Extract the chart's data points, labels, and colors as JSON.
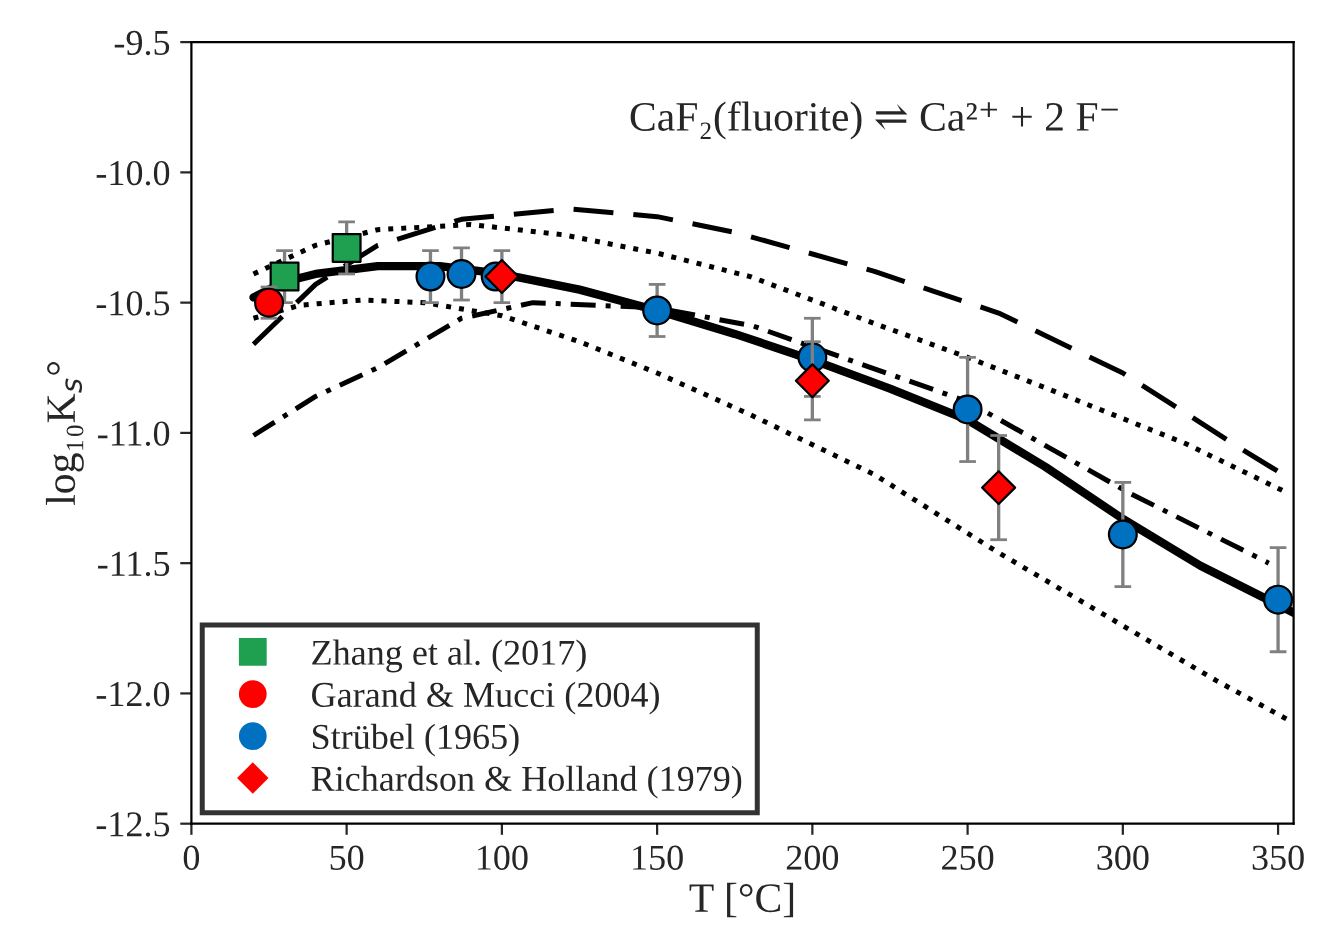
{
  "chart_data": {
    "type": "scatter",
    "annotations": [
      "CaF₂(fluorite) ⇌ Ca²⁺ + 2 F⁻"
    ],
    "xlabel": "T [°C]",
    "ylabel": "log₁₀K$_{s}$°",
    "xlim": [
      0,
      355
    ],
    "xticks": [
      0,
      50,
      100,
      150,
      200,
      250,
      300,
      350
    ],
    "ylim": [
      -12.5,
      -9.5
    ],
    "yticks": [
      -12.5,
      {
        "value": -12,
        "label": "-12.0"
      },
      -11.5,
      {
        "value": -11,
        "label": "-11.0"
      },
      -10.5,
      {
        "value": -10,
        "label": "-10.0"
      },
      -9.5
    ],
    "grid": false,
    "legend": "bottom left",
    "series": [
      {
        "type": "line",
        "color": "#000000",
        "line_style": "solid",
        "marker": "none",
        "x": [
          20,
          30,
          40,
          60,
          80,
          100,
          125,
          150,
          175,
          200,
          225,
          250,
          275,
          300,
          325,
          350,
          355
        ],
        "values": [
          -10.48,
          -10.42,
          -10.39,
          -10.36,
          -10.36,
          -10.39,
          -10.45,
          -10.53,
          -10.62,
          -10.72,
          -10.83,
          -10.95,
          -11.13,
          -11.33,
          -11.51,
          -11.66,
          -11.69
        ]
      },
      {
        "type": "line",
        "color": "#000000",
        "line_style": "dotted",
        "marker": "none",
        "x": [
          20,
          40,
          60,
          90,
          120,
          150,
          180,
          220,
          250,
          280,
          320,
          353
        ],
        "values": [
          -10.39,
          -10.28,
          -10.22,
          -10.2,
          -10.24,
          -10.31,
          -10.4,
          -10.58,
          -10.71,
          -10.85,
          -11.04,
          -11.23
        ]
      },
      {
        "type": "line",
        "color": "#000000",
        "line_style": "dotted",
        "marker": "none",
        "x": [
          20,
          35,
          55,
          75,
          100,
          125,
          150,
          180,
          220,
          260,
          300,
          330,
          353
        ],
        "values": [
          -10.56,
          -10.51,
          -10.49,
          -10.5,
          -10.55,
          -10.65,
          -10.77,
          -10.93,
          -11.16,
          -11.46,
          -11.74,
          -11.95,
          -12.1
        ]
      },
      {
        "type": "line",
        "color": "#000000",
        "line_style": "dashed",
        "marker": "none",
        "x": [
          20,
          40,
          60,
          87,
          122,
          150,
          175,
          220,
          260,
          300,
          338,
          353
        ],
        "values": [
          -10.66,
          -10.43,
          -10.28,
          -10.18,
          -10.14,
          -10.17,
          -10.23,
          -10.38,
          -10.54,
          -10.77,
          -11.06,
          -11.17
        ]
      },
      {
        "type": "line",
        "color": "#000000",
        "line_style": "dashdot",
        "marker": "none",
        "x": [
          20,
          40,
          60,
          87,
          110,
          150,
          181,
          200,
          250,
          302,
          347
        ],
        "values": [
          -11.01,
          -10.86,
          -10.75,
          -10.56,
          -10.5,
          -10.52,
          -10.59,
          -10.67,
          -10.88,
          -11.23,
          -11.5
        ]
      },
      {
        "name": "Zhang et al. (2017)",
        "color": "#1fa050",
        "marker": "square",
        "x": [
          30,
          50
        ],
        "values": [
          -10.4,
          -10.29
        ],
        "errors": [
          0.1,
          0.1
        ]
      },
      {
        "name": "Garand & Mucci (2004)",
        "color": "#ff0000",
        "marker": "circle",
        "x": [
          25
        ],
        "values": [
          -10.5
        ],
        "errors": [
          0.06
        ]
      },
      {
        "name": "Strübel (1965)",
        "color": "#0070c0",
        "marker": "circle",
        "x": [
          77,
          87,
          98,
          150,
          200,
          250,
          300,
          350
        ],
        "values": [
          -10.4,
          -10.39,
          -10.4,
          -10.53,
          -10.71,
          -10.91,
          -11.39,
          -11.64
        ],
        "errors": [
          0.1,
          0.1,
          null,
          0.1,
          0.15,
          0.2,
          0.2,
          0.2
        ]
      },
      {
        "name": "Richardson & Holland (1979)",
        "color": "#ff0000",
        "marker": "diamond",
        "x": [
          100,
          200,
          260
        ],
        "values": [
          -10.4,
          -10.8,
          -11.21
        ],
        "errors": [
          0.1,
          0.15,
          0.2
        ]
      }
    ]
  }
}
